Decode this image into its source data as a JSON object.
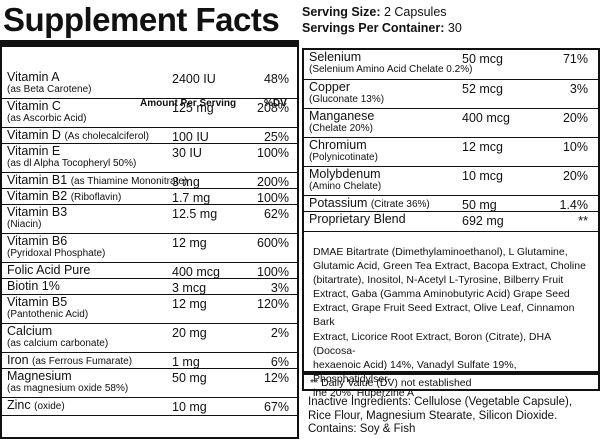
{
  "title": "Supplement Facts",
  "serving": {
    "size_label": "Serving Size:",
    "size_value": "2 Capsules",
    "container_label": "Servings Per Container:",
    "container_value": "30"
  },
  "left_header": {
    "amount": "Amount Per Serving",
    "dv": "%DV"
  },
  "left_rows": [
    {
      "name": "Vitamin A",
      "sub": "(as Beta Carotene)",
      "inline": "",
      "amount": "2400 IU",
      "dv": "48%"
    },
    {
      "name": "Vitamin C",
      "sub": "(as Ascorbic Acid)",
      "inline": "",
      "amount": "125 mg",
      "dv": "208%"
    },
    {
      "name": "Vitamin D",
      "sub": "",
      "inline": "(As cholecalciferol)",
      "amount": "100 IU",
      "dv": "25%"
    },
    {
      "name": "Vitamin E",
      "sub": "(as dl Alpha Tocopheryl 50%)",
      "inline": "",
      "amount": "30 IU",
      "dv": "100%"
    },
    {
      "name": "Vitamin B1",
      "sub": "",
      "inline": "(as Thiamine Mononitrate)",
      "amount": "3 mg",
      "dv": "200%"
    },
    {
      "name": "Vitamin B2",
      "sub": "",
      "inline": "(Riboflavin)",
      "amount": "1.7 mg",
      "dv": "100%"
    },
    {
      "name": "Vitamin B3",
      "sub": "(Niacin)",
      "inline": "",
      "amount": "12.5 mg",
      "dv": "62%"
    },
    {
      "name": "Vitamin B6",
      "sub": "(Pyridoxal Phosphate)",
      "inline": "",
      "amount": "12 mg",
      "dv": "600%"
    },
    {
      "name": "Folic Acid Pure",
      "sub": "",
      "inline": "",
      "amount": "400 mcg",
      "dv": "100%"
    },
    {
      "name": "Biotin 1%",
      "sub": "",
      "inline": "",
      "amount": "3 mcg",
      "dv": "3%"
    },
    {
      "name": "Vitamin B5",
      "sub": "(Pantothenic Acid)",
      "inline": "",
      "amount": "12 mg",
      "dv": "120%"
    },
    {
      "name": "Calcium",
      "sub": "(as calcium carbonate)",
      "inline": "",
      "amount": "20 mg",
      "dv": "2%"
    },
    {
      "name": "Iron",
      "sub": "",
      "inline": "(as Ferrous Fumarate)",
      "amount": "1 mg",
      "dv": "6%"
    },
    {
      "name": "Magnesium",
      "sub": "(as magnesium oxide 58%)",
      "inline": "",
      "amount": "50 mg",
      "dv": "12%"
    },
    {
      "name": "Zinc",
      "sub": "",
      "inline": "(oxide)",
      "amount": "10 mg",
      "dv": "67%"
    }
  ],
  "right_rows": [
    {
      "name": "Selenium",
      "sub": "(Selenium Amino Acid Chelate 0.2%)",
      "inline": "",
      "amount": "50 mcg",
      "dv": "71%"
    },
    {
      "name": "Copper",
      "sub": "(Gluconate 13%)",
      "inline": "",
      "amount": "52 mcg",
      "dv": "3%"
    },
    {
      "name": "Manganese",
      "sub": "(Chelate 20%)",
      "inline": "",
      "amount": "400 mcg",
      "dv": "20%"
    },
    {
      "name": "Chromium",
      "sub": "(Polynicotinate)",
      "inline": "",
      "amount": "12 mcg",
      "dv": "10%"
    },
    {
      "name": "Molybdenum",
      "sub": "(Amino Chelate)",
      "inline": "",
      "amount": "10 mcg",
      "dv": "20%"
    },
    {
      "name": "Potassium",
      "sub": "",
      "inline": "(Citrate 36%)",
      "amount": "50 mg",
      "dv": "1.4%"
    },
    {
      "name": "Proprietary Blend",
      "sub": "",
      "inline": "",
      "amount": "692 mg",
      "dv": "**"
    }
  ],
  "blend_lines": [
    "DMAE Bitartrate (Dimethylaminoethanol), L Glutamine,",
    "Glutamic Acid, Green Tea Extract, Bacopa Extract, Choline",
    "(bitartrate), Inositol, N-Acetyl L-Tyrosine, Bilberry Fruit",
    "Extract, Gaba (Gamma Aminobutyric Acid) Grape Seed",
    "Extract, Grape Fruit Seed Extract, Olive Leaf, Cinnamon Bark",
    "Extract, Licorice Root Extract, Boron (Citrate), DHA (Docosa-",
    "hexaenoic Acid) 14%, Vanadyl Sulfate 19%, Phosphatidylser-",
    "ine 20%, Huperzine A"
  ],
  "footnote": "** Daily Value (DV) not established",
  "inactive_lines": [
    "Inactive Ingredients: Cellulose (Vegetable Capsule),",
    "Rice Flour, Magnesium Stearate, Silicon Dioxide.",
    "Contains: Soy & Fish"
  ]
}
